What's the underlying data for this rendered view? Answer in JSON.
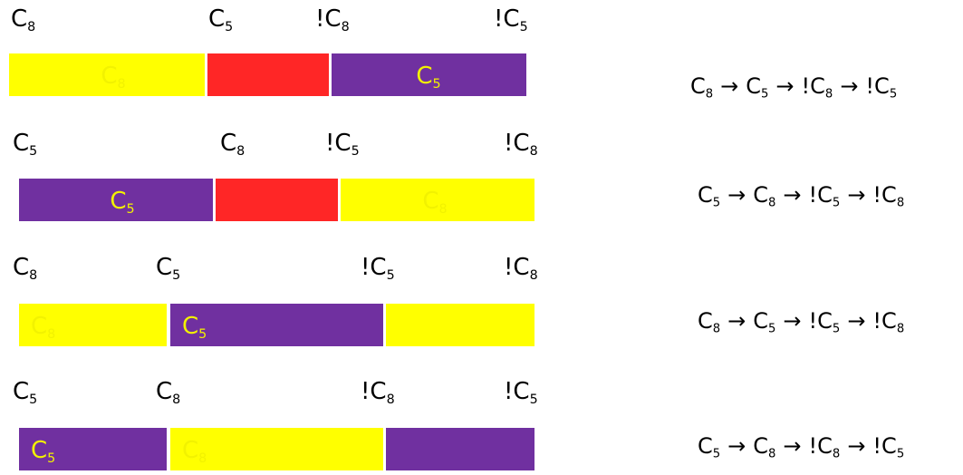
{
  "colors": {
    "yellow": "#ffff00",
    "red": "#ff2626",
    "purple": "#7030a0",
    "segment_text": "#f2f200"
  },
  "rows": [
    {
      "labels": [
        {
          "base": "C",
          "sub": "8"
        },
        {
          "base": "C",
          "sub": "5"
        },
        {
          "base": "!C",
          "sub": "8"
        },
        {
          "base": "!C",
          "sub": "5"
        }
      ],
      "segments": [
        {
          "color": "yellow",
          "label": {
            "base": "C",
            "sub": "8"
          }
        },
        {
          "color": "red",
          "label": null
        },
        {
          "color": "purple",
          "label": {
            "base": "C",
            "sub": "5"
          }
        }
      ],
      "sequence": [
        {
          "base": "C",
          "sub": "8"
        },
        {
          "base": "C",
          "sub": "5"
        },
        {
          "base": "!C",
          "sub": "8"
        },
        {
          "base": "!C",
          "sub": "5"
        }
      ]
    },
    {
      "labels": [
        {
          "base": "C",
          "sub": "5"
        },
        {
          "base": "C",
          "sub": "8"
        },
        {
          "base": "!C",
          "sub": "5"
        },
        {
          "base": "!C",
          "sub": "8"
        }
      ],
      "segments": [
        {
          "color": "purple",
          "label": {
            "base": "C",
            "sub": "5"
          }
        },
        {
          "color": "red",
          "label": null
        },
        {
          "color": "yellow",
          "label": {
            "base": "C",
            "sub": "8"
          }
        }
      ],
      "sequence": [
        {
          "base": "C",
          "sub": "5"
        },
        {
          "base": "C",
          "sub": "8"
        },
        {
          "base": "!C",
          "sub": "5"
        },
        {
          "base": "!C",
          "sub": "8"
        }
      ]
    },
    {
      "labels": [
        {
          "base": "C",
          "sub": "8"
        },
        {
          "base": "C",
          "sub": "5"
        },
        {
          "base": "!C",
          "sub": "5"
        },
        {
          "base": "!C",
          "sub": "8"
        }
      ],
      "segments": [
        {
          "color": "yellow",
          "label": {
            "base": "C",
            "sub": "8"
          }
        },
        {
          "color": "purple",
          "label": {
            "base": "C",
            "sub": "5"
          }
        },
        {
          "color": "yellow",
          "label": null
        }
      ],
      "sequence": [
        {
          "base": "C",
          "sub": "8"
        },
        {
          "base": "C",
          "sub": "5"
        },
        {
          "base": "!C",
          "sub": "5"
        },
        {
          "base": "!C",
          "sub": "8"
        }
      ]
    },
    {
      "labels": [
        {
          "base": "C",
          "sub": "5"
        },
        {
          "base": "C",
          "sub": "8"
        },
        {
          "base": "!C",
          "sub": "8"
        },
        {
          "base": "!C",
          "sub": "5"
        }
      ],
      "segments": [
        {
          "color": "purple",
          "label": {
            "base": "C",
            "sub": "5"
          }
        },
        {
          "color": "yellow",
          "label": {
            "base": "C",
            "sub": "8"
          }
        },
        {
          "color": "purple",
          "label": null
        }
      ],
      "sequence": [
        {
          "base": "C",
          "sub": "5"
        },
        {
          "base": "C",
          "sub": "8"
        },
        {
          "base": "!C",
          "sub": "8"
        },
        {
          "base": "!C",
          "sub": "5"
        }
      ]
    }
  ]
}
